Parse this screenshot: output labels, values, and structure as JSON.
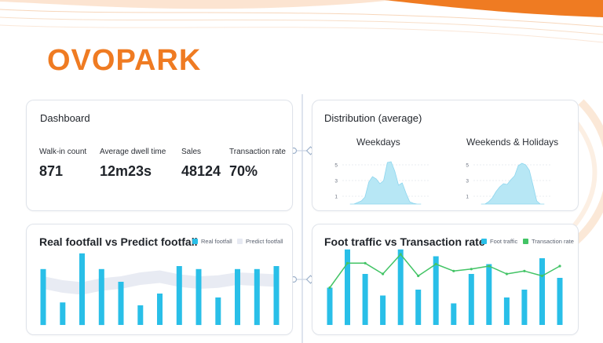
{
  "brand": {
    "logo_text": "OVOPARK",
    "accent": "#ef7b22"
  },
  "dashboard": {
    "title": "Dashboard",
    "kpis": [
      {
        "label": "Walk-in count",
        "value": "871"
      },
      {
        "label": "Average dwell time",
        "value": "12m23s"
      },
      {
        "label": "Sales",
        "value": "48124"
      },
      {
        "label": "Transaction rate",
        "value": "70%"
      }
    ]
  },
  "distribution": {
    "title": "Distribution (average)",
    "panels": [
      {
        "title": "Weekdays",
        "ticks": [
          "5",
          "3",
          "1"
        ]
      },
      {
        "title": "Weekends & Holidays",
        "ticks": [
          "5",
          "3",
          "1"
        ]
      }
    ]
  },
  "footfall": {
    "title": "Real footfall vs Predict footfall",
    "legend": {
      "real": "Real footfall",
      "predict": "Predict footfall"
    }
  },
  "traffic": {
    "title": "Foot traffic vs Transaction rate",
    "legend": {
      "traffic": "Foot traffic",
      "rate": "Transaction rate"
    }
  },
  "colors": {
    "bar": "#29bfe8",
    "line": "#43c466",
    "area": "#b7e7f5",
    "predict_band": "#e6e9f2"
  },
  "chart_data": [
    {
      "type": "area",
      "title": "Weekdays",
      "ylim": [
        0,
        6
      ],
      "yticks": [
        1,
        3,
        5
      ],
      "values": [
        0,
        0,
        0.2,
        0.4,
        0.9,
        2.8,
        3.5,
        3.2,
        2.6,
        3.0,
        5.3,
        5.4,
        4.2,
        2.4,
        2.7,
        1.4,
        0.3,
        0.1,
        0,
        0
      ]
    },
    {
      "type": "area",
      "title": "Weekends & Holidays",
      "ylim": [
        0,
        6
      ],
      "yticks": [
        1,
        3,
        5
      ],
      "values": [
        0,
        0,
        0.3,
        0.8,
        1.6,
        2.2,
        2.6,
        2.5,
        3.1,
        3.6,
        4.9,
        5.2,
        5.0,
        4.3,
        2.4,
        0.4,
        0,
        0
      ]
    },
    {
      "type": "bar",
      "title": "Real footfall vs Predict footfall",
      "series": [
        {
          "name": "Real footfall",
          "values": [
            57,
            23,
            73,
            57,
            44,
            20,
            32,
            60,
            57,
            28,
            57,
            57,
            60
          ]
        },
        {
          "name": "Predict footfall",
          "values": [
            44,
            40,
            38,
            42,
            44,
            48,
            50,
            46,
            44,
            45,
            48,
            47,
            46
          ]
        }
      ]
    },
    {
      "type": "bar",
      "title": "Foot traffic vs Transaction rate",
      "series": [
        {
          "name": "Foot traffic",
          "values": [
            38,
            77,
            52,
            30,
            77,
            36,
            70,
            22,
            52,
            62,
            28,
            36,
            68,
            48
          ]
        },
        {
          "name": "Transaction rate",
          "values": [
            38,
            63,
            63,
            52,
            72,
            50,
            62,
            55,
            57,
            60,
            52,
            55,
            50,
            60
          ]
        }
      ]
    }
  ]
}
